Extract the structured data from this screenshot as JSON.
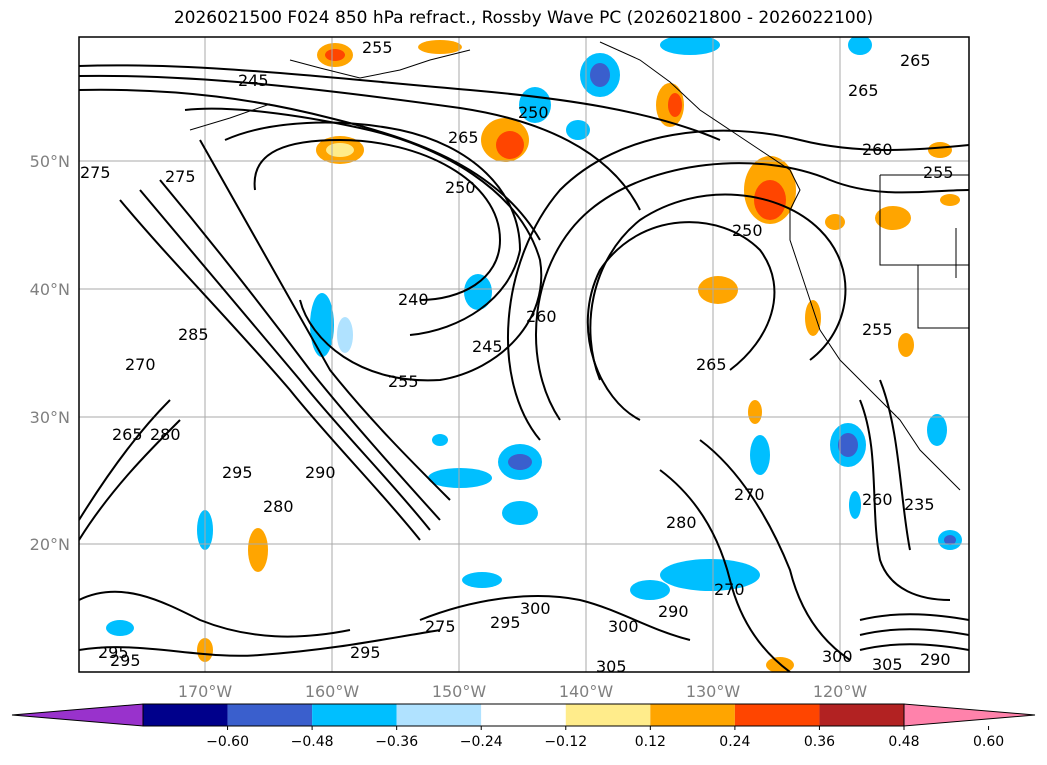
{
  "title": "2026021500 F024 850 hPa refract., Rossby Wave PC (2026021800 - 2026022100)",
  "map": {
    "lat_labels": [
      "50°N",
      "40°N",
      "30°N",
      "20°N"
    ],
    "lon_labels": [
      "170°W",
      "160°W",
      "150°W",
      "140°W",
      "130°W",
      "120°W"
    ],
    "contour_labels": [
      "255",
      "265",
      "250",
      "265",
      "245",
      "275",
      "250",
      "275",
      "265",
      "260",
      "255",
      "285",
      "240",
      "245",
      "260",
      "250",
      "255",
      "270",
      "265",
      "265",
      "255",
      "290",
      "295",
      "280",
      "270",
      "280",
      "290",
      "300",
      "295",
      "275",
      "300",
      "295",
      "300",
      "305",
      "305",
      "295",
      "295",
      "290",
      "260",
      "235",
      "270",
      "280"
    ]
  },
  "colorbar": {
    "ticks": [
      "−0.60",
      "−0.48",
      "−0.36",
      "−0.24",
      "−0.12",
      "0.12",
      "0.24",
      "0.36",
      "0.48",
      "0.60"
    ],
    "colors": [
      "#9932cc",
      "#00008b",
      "#3a5fcd",
      "#00bfff",
      "#b0e2ff",
      "#ffffff",
      "#ffec8b",
      "#ffa500",
      "#ff4500",
      "#b22222",
      "#ff82ab"
    ]
  }
}
